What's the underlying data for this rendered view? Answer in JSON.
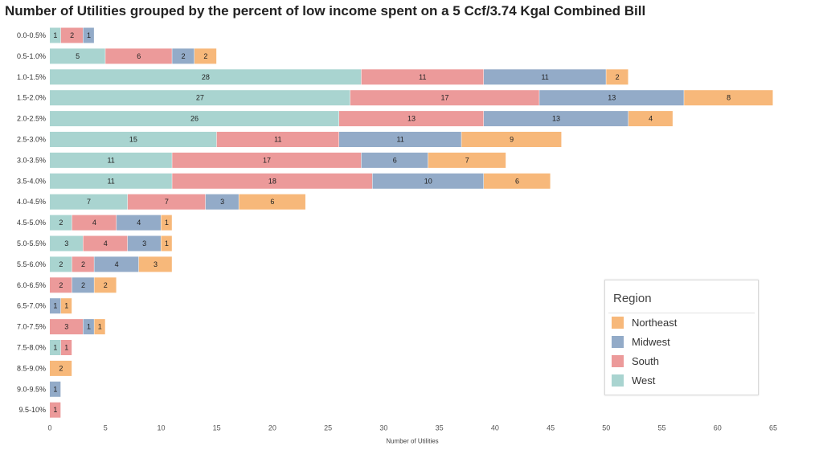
{
  "chart_data": {
    "type": "bar",
    "orientation": "horizontal",
    "stacked": true,
    "title": "Number of Utilities grouped by the percent of low income spent on a 5 Ccf/3.74 Kgal Combined Bill",
    "xlabel": "Number of Utilities",
    "ylabel": "",
    "xlim": [
      0,
      65
    ],
    "xticks": [
      0,
      5,
      10,
      15,
      20,
      25,
      30,
      35,
      40,
      45,
      50,
      55,
      60,
      65
    ],
    "categories": [
      "0.0-0.5%",
      "0.5-1.0%",
      "1.0-1.5%",
      "1.5-2.0%",
      "2.0-2.5%",
      "2.5-3.0%",
      "3.0-3.5%",
      "3.5-4.0%",
      "4.0-4.5%",
      "4.5-5.0%",
      "5.0-5.5%",
      "5.5-6.0%",
      "6.0-6.5%",
      "6.5-7.0%",
      "7.0-7.5%",
      "7.5-8.0%",
      "8.5-9.0%",
      "9.0-9.5%",
      "9.5-10%"
    ],
    "series": [
      {
        "name": "West",
        "color": "#a9d4d0",
        "values": [
          1,
          5,
          28,
          27,
          26,
          15,
          11,
          11,
          7,
          2,
          3,
          2,
          0,
          0,
          0,
          1,
          0,
          0,
          0
        ]
      },
      {
        "name": "South",
        "color": "#ec9a9a",
        "values": [
          2,
          6,
          11,
          17,
          13,
          11,
          17,
          18,
          7,
          4,
          4,
          2,
          2,
          0,
          3,
          1,
          0,
          0,
          1
        ]
      },
      {
        "name": "Midwest",
        "color": "#93abc8",
        "values": [
          1,
          2,
          11,
          13,
          13,
          11,
          6,
          10,
          3,
          4,
          3,
          4,
          2,
          1,
          1,
          0,
          0,
          1,
          0
        ]
      },
      {
        "name": "Northeast",
        "color": "#f7b87a",
        "values": [
          0,
          2,
          2,
          8,
          4,
          9,
          7,
          6,
          6,
          1,
          1,
          3,
          2,
          1,
          1,
          0,
          2,
          0,
          0
        ]
      }
    ],
    "legend": {
      "title": "Region",
      "placement": "bottom-right",
      "entries": [
        "Northeast",
        "Midwest",
        "South",
        "West"
      ]
    }
  }
}
